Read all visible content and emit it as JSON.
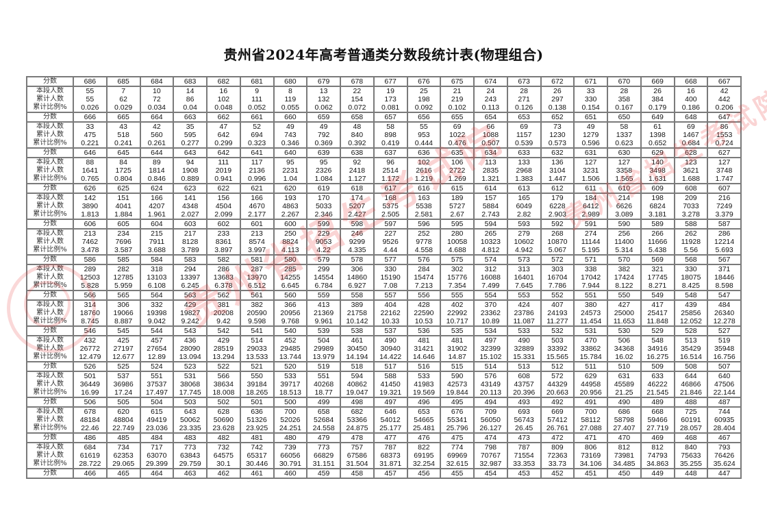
{
  "title": "贵州省2024年高考普通类分数段统计表(物理组合)",
  "row_labels": {
    "score": "分数",
    "count": "本段人数",
    "cumulative": "累计人数",
    "percent": "累计比例%"
  },
  "watermark": "贵州省招生考试院",
  "blocks": [
    {
      "scores": [
        "686",
        "685",
        "684",
        "683",
        "682",
        "681",
        "680",
        "679",
        "678",
        "677",
        "676",
        "675",
        "674",
        "673",
        "672",
        "671",
        "670",
        "669",
        "668",
        "667"
      ],
      "counts": [
        "55",
        "7",
        "10",
        "14",
        "16",
        "9",
        "8",
        "13",
        "22",
        "19",
        "25",
        "21",
        "24",
        "28",
        "26",
        "33",
        "28",
        "26",
        "16",
        "42"
      ],
      "cumulative": [
        "55",
        "62",
        "72",
        "86",
        "102",
        "111",
        "119",
        "132",
        "154",
        "173",
        "198",
        "219",
        "243",
        "271",
        "297",
        "330",
        "358",
        "384",
        "400",
        "442"
      ],
      "percent": [
        "0.026",
        "0.029",
        "0.034",
        "0.04",
        "0.048",
        "0.052",
        "0.055",
        "0.062",
        "0.072",
        "0.081",
        "0.092",
        "0.102",
        "0.113",
        "0.126",
        "0.138",
        "0.154",
        "0.167",
        "0.179",
        "0.186",
        "0.206"
      ]
    },
    {
      "scores": [
        "666",
        "665",
        "664",
        "663",
        "662",
        "661",
        "660",
        "659",
        "658",
        "657",
        "656",
        "655",
        "654",
        "653",
        "652",
        "651",
        "650",
        "649",
        "648",
        "647"
      ],
      "counts": [
        "33",
        "43",
        "42",
        "35",
        "47",
        "52",
        "49",
        "49",
        "48",
        "58",
        "55",
        "69",
        "66",
        "69",
        "73",
        "49",
        "58",
        "61",
        "69",
        "86"
      ],
      "cumulative": [
        "475",
        "518",
        "560",
        "595",
        "642",
        "694",
        "743",
        "792",
        "840",
        "898",
        "953",
        "1022",
        "1088",
        "1157",
        "1230",
        "1279",
        "1337",
        "1398",
        "1467",
        "1553"
      ],
      "percent": [
        "0.221",
        "0.241",
        "0.261",
        "0.277",
        "0.299",
        "0.323",
        "0.346",
        "0.369",
        "0.392",
        "0.419",
        "0.444",
        "0.476",
        "0.507",
        "0.539",
        "0.573",
        "0.596",
        "0.623",
        "0.652",
        "0.684",
        "0.724"
      ]
    },
    {
      "scores": [
        "646",
        "645",
        "644",
        "643",
        "642",
        "641",
        "640",
        "639",
        "638",
        "637",
        "636",
        "635",
        "634",
        "633",
        "632",
        "631",
        "630",
        "629",
        "628",
        "627"
      ],
      "counts": [
        "88",
        "84",
        "89",
        "94",
        "111",
        "117",
        "95",
        "95",
        "92",
        "96",
        "102",
        "106",
        "113",
        "133",
        "136",
        "127",
        "127",
        "140",
        "123",
        "127"
      ],
      "cumulative": [
        "1641",
        "1725",
        "1814",
        "1908",
        "2019",
        "2136",
        "2231",
        "2326",
        "2418",
        "2514",
        "2616",
        "2722",
        "2835",
        "2968",
        "3104",
        "3231",
        "3358",
        "3498",
        "3621",
        "3748"
      ],
      "percent": [
        "0.765",
        "0.804",
        "0.846",
        "0.889",
        "0.941",
        "0.996",
        "1.04",
        "1.084",
        "1.127",
        "1.172",
        "1.219",
        "1.269",
        "1.321",
        "1.383",
        "1.447",
        "1.506",
        "1.565",
        "1.631",
        "1.688",
        "1.747"
      ]
    },
    {
      "scores": [
        "626",
        "625",
        "624",
        "623",
        "622",
        "621",
        "620",
        "619",
        "618",
        "617",
        "616",
        "615",
        "614",
        "613",
        "612",
        "611",
        "610",
        "609",
        "608",
        "607"
      ],
      "counts": [
        "142",
        "151",
        "166",
        "141",
        "156",
        "166",
        "193",
        "170",
        "174",
        "168",
        "163",
        "189",
        "157",
        "165",
        "179",
        "184",
        "214",
        "198",
        "209",
        "216"
      ],
      "cumulative": [
        "3890",
        "4041",
        "4207",
        "4348",
        "4504",
        "4670",
        "4863",
        "5033",
        "5207",
        "5375",
        "5538",
        "5727",
        "5884",
        "6049",
        "6228",
        "6412",
        "6626",
        "6824",
        "7033",
        "7249"
      ],
      "percent": [
        "1.813",
        "1.884",
        "1.961",
        "2.027",
        "2.099",
        "2.177",
        "2.267",
        "2.346",
        "2.427",
        "2.505",
        "2.581",
        "2.67",
        "2.743",
        "2.82",
        "2.903",
        "2.989",
        "3.089",
        "3.181",
        "3.278",
        "3.379"
      ]
    },
    {
      "scores": [
        "606",
        "605",
        "604",
        "603",
        "602",
        "601",
        "600",
        "599",
        "598",
        "597",
        "596",
        "595",
        "594",
        "593",
        "592",
        "591",
        "590",
        "589",
        "588",
        "587"
      ],
      "counts": [
        "213",
        "234",
        "215",
        "217",
        "233",
        "213",
        "250",
        "229",
        "246",
        "227",
        "252",
        "280",
        "265",
        "279",
        "268",
        "274",
        "256",
        "266",
        "262",
        "286"
      ],
      "cumulative": [
        "7462",
        "7696",
        "7911",
        "8128",
        "8361",
        "8574",
        "8824",
        "9053",
        "9299",
        "9526",
        "9778",
        "10058",
        "10323",
        "10602",
        "10870",
        "11144",
        "11400",
        "11666",
        "11928",
        "12214"
      ],
      "percent": [
        "3.478",
        "3.587",
        "3.688",
        "3.789",
        "3.897",
        "3.997",
        "4.113",
        "4.22",
        "4.335",
        "4.44",
        "4.558",
        "4.688",
        "4.812",
        "4.942",
        "5.067",
        "5.195",
        "5.314",
        "5.438",
        "5.56",
        "5.693"
      ]
    },
    {
      "scores": [
        "586",
        "585",
        "584",
        "583",
        "582",
        "581",
        "580",
        "579",
        "578",
        "577",
        "576",
        "575",
        "574",
        "573",
        "572",
        "571",
        "570",
        "569",
        "568",
        "567"
      ],
      "counts": [
        "289",
        "282",
        "318",
        "294",
        "286",
        "287",
        "285",
        "299",
        "306",
        "330",
        "284",
        "302",
        "312",
        "313",
        "303",
        "338",
        "382",
        "321",
        "330",
        "371"
      ],
      "cumulative": [
        "12503",
        "12785",
        "13103",
        "13397",
        "13683",
        "13970",
        "14255",
        "14554",
        "14860",
        "15190",
        "15474",
        "15776",
        "16088",
        "16401",
        "16704",
        "17042",
        "17424",
        "17745",
        "18075",
        "18446"
      ],
      "percent": [
        "5.828",
        "5.959",
        "6.108",
        "6.245",
        "6.378",
        "6.512",
        "6.645",
        "6.784",
        "6.927",
        "7.08",
        "7.213",
        "7.354",
        "7.499",
        "7.645",
        "7.786",
        "7.944",
        "8.122",
        "8.271",
        "8.425",
        "8.598"
      ]
    },
    {
      "scores": [
        "566",
        "565",
        "564",
        "563",
        "562",
        "561",
        "560",
        "559",
        "558",
        "557",
        "556",
        "555",
        "554",
        "553",
        "552",
        "551",
        "550",
        "549",
        "548",
        "547"
      ],
      "counts": [
        "314",
        "306",
        "332",
        "429",
        "381",
        "382",
        "366",
        "413",
        "389",
        "404",
        "428",
        "402",
        "370",
        "424",
        "407",
        "380",
        "427",
        "417",
        "439",
        "484"
      ],
      "cumulative": [
        "18760",
        "19066",
        "19398",
        "19827",
        "20208",
        "20590",
        "20956",
        "21369",
        "21758",
        "22162",
        "22590",
        "22992",
        "23362",
        "23786",
        "24193",
        "24573",
        "25000",
        "25417",
        "25856",
        "26340"
      ],
      "percent": [
        "8.745",
        "8.887",
        "9.042",
        "9.242",
        "9.42",
        "9.598",
        "9.768",
        "9.961",
        "10.142",
        "10.33",
        "10.53",
        "10.717",
        "10.89",
        "11.087",
        "11.277",
        "11.454",
        "11.653",
        "11.848",
        "12.052",
        "12.278"
      ]
    },
    {
      "scores": [
        "546",
        "545",
        "544",
        "543",
        "542",
        "541",
        "540",
        "539",
        "538",
        "537",
        "536",
        "535",
        "534",
        "533",
        "532",
        "531",
        "530",
        "529",
        "528",
        "527"
      ],
      "counts": [
        "432",
        "425",
        "457",
        "436",
        "429",
        "514",
        "452",
        "504",
        "461",
        "490",
        "481",
        "481",
        "497",
        "490",
        "503",
        "470",
        "506",
        "548",
        "513",
        "519"
      ],
      "cumulative": [
        "26772",
        "27197",
        "27654",
        "28090",
        "28519",
        "29033",
        "29485",
        "29989",
        "30450",
        "30940",
        "31421",
        "31902",
        "32399",
        "32889",
        "33392",
        "33862",
        "34368",
        "34916",
        "35429",
        "35948"
      ],
      "percent": [
        "12.479",
        "12.677",
        "12.89",
        "13.094",
        "13.294",
        "13.533",
        "13.744",
        "13.979",
        "14.194",
        "14.422",
        "14.646",
        "14.87",
        "15.102",
        "15.331",
        "15.565",
        "15.784",
        "16.02",
        "16.275",
        "16.514",
        "16.756"
      ]
    },
    {
      "scores": [
        "526",
        "525",
        "524",
        "523",
        "522",
        "521",
        "520",
        "519",
        "518",
        "517",
        "516",
        "515",
        "514",
        "513",
        "512",
        "511",
        "510",
        "509",
        "508",
        "507"
      ],
      "counts": [
        "501",
        "537",
        "551",
        "531",
        "566",
        "550",
        "533",
        "551",
        "594",
        "588",
        "533",
        "590",
        "576",
        "608",
        "572",
        "629",
        "631",
        "633",
        "644",
        "640"
      ],
      "cumulative": [
        "36449",
        "36986",
        "37537",
        "38068",
        "38634",
        "39184",
        "39717",
        "40268",
        "40862",
        "41450",
        "41983",
        "42573",
        "43149",
        "43757",
        "44329",
        "44958",
        "45589",
        "46222",
        "46866",
        "47506"
      ],
      "percent": [
        "16.99",
        "17.24",
        "17.497",
        "17.745",
        "18.008",
        "18.265",
        "18.513",
        "18.77",
        "19.047",
        "19.321",
        "19.569",
        "19.844",
        "20.113",
        "20.396",
        "20.663",
        "20.956",
        "21.25",
        "21.545",
        "21.846",
        "22.144"
      ]
    },
    {
      "scores": [
        "506",
        "505",
        "504",
        "503",
        "502",
        "501",
        "500",
        "499",
        "498",
        "497",
        "496",
        "495",
        "494",
        "493",
        "492",
        "491",
        "490",
        "489",
        "488",
        "487"
      ],
      "counts": [
        "678",
        "620",
        "615",
        "643",
        "628",
        "636",
        "700",
        "658",
        "682",
        "646",
        "653",
        "676",
        "709",
        "693",
        "669",
        "700",
        "686",
        "668",
        "725",
        "744"
      ],
      "cumulative": [
        "48184",
        "48804",
        "49419",
        "50062",
        "50690",
        "51326",
        "52026",
        "52684",
        "53366",
        "54012",
        "54665",
        "55341",
        "56050",
        "56743",
        "57412",
        "58112",
        "58798",
        "59466",
        "60191",
        "60935"
      ],
      "percent": [
        "22.46",
        "22.749",
        "23.036",
        "23.335",
        "23.628",
        "23.925",
        "24.251",
        "24.558",
        "24.875",
        "25.177",
        "25.481",
        "25.796",
        "26.127",
        "26.45",
        "26.761",
        "27.088",
        "27.407",
        "27.719",
        "28.057",
        "28.404"
      ]
    },
    {
      "scores": [
        "486",
        "485",
        "484",
        "483",
        "482",
        "481",
        "480",
        "479",
        "478",
        "477",
        "476",
        "475",
        "474",
        "473",
        "472",
        "471",
        "470",
        "469",
        "468",
        "467"
      ],
      "counts": [
        "684",
        "734",
        "717",
        "773",
        "732",
        "742",
        "739",
        "773",
        "757",
        "787",
        "822",
        "774",
        "798",
        "787",
        "809",
        "806",
        "812",
        "812",
        "840",
        "793"
      ],
      "cumulative": [
        "61619",
        "62353",
        "63070",
        "63843",
        "64575",
        "65317",
        "66056",
        "66829",
        "67586",
        "68373",
        "69195",
        "69969",
        "70767",
        "71554",
        "72363",
        "73169",
        "73981",
        "74793",
        "75633",
        "76426"
      ],
      "percent": [
        "28.722",
        "29.065",
        "29.399",
        "29.759",
        "30.1",
        "30.446",
        "30.791",
        "31.151",
        "31.504",
        "31.871",
        "32.254",
        "32.615",
        "32.987",
        "33.353",
        "33.73",
        "34.106",
        "34.485",
        "34.863",
        "35.255",
        "35.624"
      ]
    }
  ],
  "final_scores": [
    "466",
    "465",
    "464",
    "463",
    "462",
    "461",
    "460",
    "459",
    "458",
    "457",
    "456",
    "455",
    "454",
    "453",
    "452",
    "451",
    "450",
    "449",
    "448",
    "447"
  ]
}
